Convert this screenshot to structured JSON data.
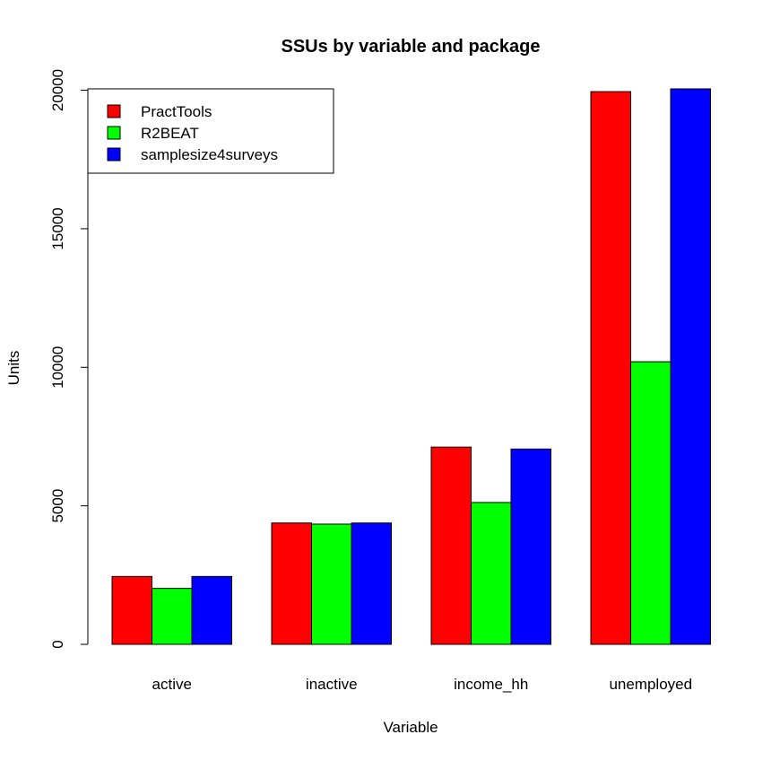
{
  "chart_data": {
    "type": "bar",
    "title": "SSUs by variable and package",
    "xlabel": "Variable",
    "ylabel": "Units",
    "categories": [
      "active",
      "inactive",
      "income_hh",
      "unemployed"
    ],
    "series": [
      {
        "name": "PractTools",
        "color": "#ff0000",
        "values": [
          2450,
          4380,
          7120,
          19950
        ]
      },
      {
        "name": "R2BEAT",
        "color": "#00ff00",
        "values": [
          2020,
          4340,
          5120,
          10200
        ]
      },
      {
        "name": "samplesize4surveys",
        "color": "#0000ff",
        "values": [
          2450,
          4380,
          7050,
          20050
        ]
      }
    ],
    "yticks": [
      0,
      5000,
      10000,
      15000,
      20000
    ],
    "ylim": [
      0,
      20050
    ],
    "legend_position": "top-left",
    "grid": false
  }
}
